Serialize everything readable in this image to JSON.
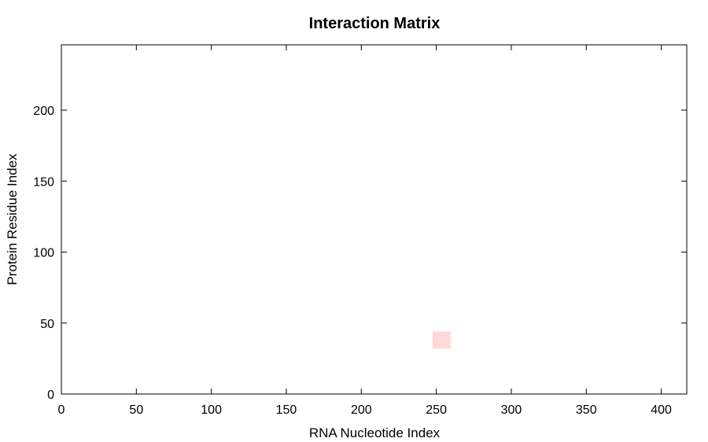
{
  "chart_data": {
    "type": "heatmap",
    "title": "Interaction Matrix",
    "xlabel": "RNA Nucleotide Index",
    "ylabel": "Protein Residue Index",
    "xlim": [
      0,
      417
    ],
    "ylim": [
      0,
      246
    ],
    "x_ticks": [
      0,
      50,
      100,
      150,
      200,
      250,
      300,
      350,
      400
    ],
    "y_ticks": [
      0,
      50,
      100,
      150,
      200
    ],
    "grid": false,
    "cells": [
      {
        "x0": 247.5,
        "x1": 259.5,
        "y0": 32,
        "y1": 44,
        "color": "#ffd8d8"
      }
    ]
  }
}
